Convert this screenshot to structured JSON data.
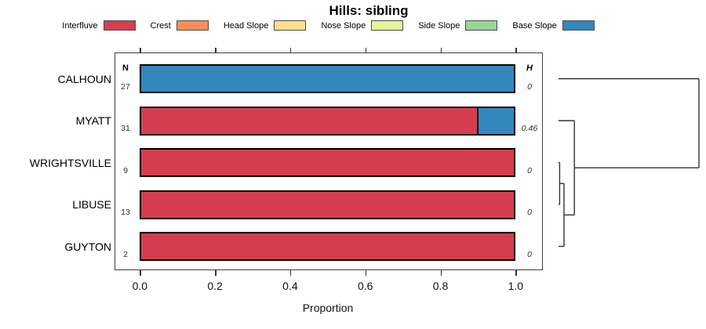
{
  "title": "Hills: sibling",
  "legend": [
    {
      "label": "Interfluve",
      "color": "#D53E4F"
    },
    {
      "label": "Crest",
      "color": "#FC8D59"
    },
    {
      "label": "Head Slope",
      "color": "#FEE08B"
    },
    {
      "label": "Nose Slope",
      "color": "#E6F598"
    },
    {
      "label": "Side Slope",
      "color": "#99D594"
    },
    {
      "label": "Base Slope",
      "color": "#3288BD"
    }
  ],
  "columns": {
    "n_header": "N",
    "h_header": "H"
  },
  "x_axis": {
    "title": "Proportion",
    "ticks": [
      "0.0",
      "0.2",
      "0.4",
      "0.6",
      "0.8",
      "1.0"
    ],
    "min": 0,
    "max": 1
  },
  "rows": [
    {
      "label": "CALHOUN",
      "n": "27",
      "h": "0",
      "segments": [
        {
          "class": "Base Slope",
          "value": 1.0
        }
      ]
    },
    {
      "label": "MYATT",
      "n": "31",
      "h": "0.46",
      "segments": [
        {
          "class": "Interfluve",
          "value": 0.9
        },
        {
          "class": "Base Slope",
          "value": 0.1
        }
      ]
    },
    {
      "label": "WRIGHTSVILLE",
      "n": "9",
      "h": "0",
      "segments": [
        {
          "class": "Interfluve",
          "value": 1.0
        }
      ]
    },
    {
      "label": "LIBUSE",
      "n": "13",
      "h": "0",
      "segments": [
        {
          "class": "Interfluve",
          "value": 1.0
        }
      ]
    },
    {
      "label": "GUYTON",
      "n": "2",
      "h": "0",
      "segments": [
        {
          "class": "Interfluve",
          "value": 1.0
        }
      ]
    }
  ],
  "chart_data": {
    "type": "bar",
    "orientation": "horizontal-stacked",
    "title": "Hills: sibling",
    "xlabel": "Proportion",
    "xlim": [
      0,
      1
    ],
    "grid": false,
    "legend_position": "top",
    "categories": [
      "CALHOUN",
      "MYATT",
      "WRIGHTSVILLE",
      "LIBUSE",
      "GUYTON"
    ],
    "n_obs": [
      27,
      31,
      9,
      13,
      2
    ],
    "shannon_h": [
      0,
      0.46,
      0,
      0,
      0
    ],
    "series": [
      {
        "name": "Interfluve",
        "color": "#D53E4F",
        "values": [
          0,
          0.9,
          1,
          1,
          1
        ]
      },
      {
        "name": "Crest",
        "color": "#FC8D59",
        "values": [
          0,
          0,
          0,
          0,
          0
        ]
      },
      {
        "name": "Head Slope",
        "color": "#FEE08B",
        "values": [
          0,
          0,
          0,
          0,
          0
        ]
      },
      {
        "name": "Nose Slope",
        "color": "#E6F598",
        "values": [
          0,
          0,
          0,
          0,
          0
        ]
      },
      {
        "name": "Side Slope",
        "color": "#99D594",
        "values": [
          0,
          0,
          0,
          0,
          0
        ]
      },
      {
        "name": "Base Slope",
        "color": "#3288BD",
        "values": [
          1,
          0.1,
          0,
          0,
          0
        ]
      }
    ],
    "dendrogram": {
      "position": "right",
      "merges": [
        {
          "a": "WRIGHTSVILLE",
          "b": "LIBUSE",
          "height": 0.008
        },
        {
          "a": "merge0",
          "b": "GUYTON",
          "height": 0.039
        },
        {
          "a": "MYATT",
          "b": "merge1",
          "height": 0.113
        },
        {
          "a": "CALHOUN",
          "b": "merge2",
          "height": 1.0
        }
      ]
    }
  }
}
